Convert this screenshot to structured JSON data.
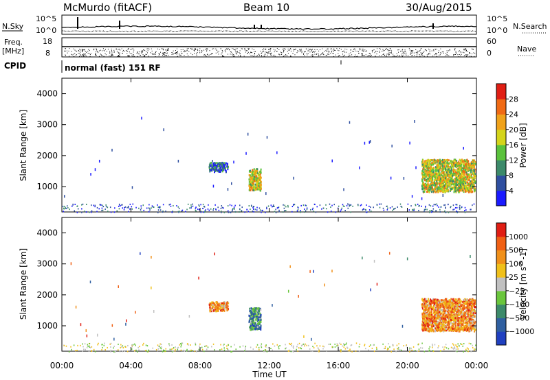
{
  "header": {
    "title": "McMurdo (fitACF)",
    "beam": "Beam 10",
    "date": "30/Aug/2015"
  },
  "summary_panel": {
    "nsky_label": "N.Sky",
    "nsky_ticks": [
      "10^5",
      "10^0"
    ],
    "nsearch_label": "N.Search",
    "nsearch_ticks": [
      "10^5",
      "10^0"
    ],
    "freq_label": "Freq.",
    "freq_unit": "[MHz]",
    "freq_ticks": [
      "18",
      "8"
    ],
    "nave_label": "Nave",
    "nave_ticks": [
      "60",
      "0"
    ],
    "cpid_label": "CPID",
    "cpid_text": "normal (fast) 151 RF"
  },
  "chart_data": [
    {
      "type": "heatmap",
      "name": "power",
      "ylabel": "Slant Range [km]",
      "xlabel": "Time UT",
      "ylim": [
        180,
        4500
      ],
      "yticks": [
        "1000",
        "2000",
        "3000",
        "4000"
      ],
      "xticks": [
        "00:00",
        "04:00",
        "08:00",
        "12:00",
        "16:00",
        "20:00",
        "00:00"
      ],
      "colorbar": {
        "label": "Power [dB]",
        "ticks": [
          "4",
          "8",
          "12",
          "16",
          "20",
          "24",
          "28"
        ],
        "colors": [
          "#1a1aff",
          "#2f4fa0",
          "#3c8a6a",
          "#5ac23c",
          "#d4d41a",
          "#f0a21a",
          "#f06a14",
          "#e01e14"
        ]
      },
      "regions": [
        {
          "t": [
            8.5,
            9.6
          ],
          "r": [
            1500,
            1800
          ],
          "level": 1
        },
        {
          "t": [
            10.8,
            11.5
          ],
          "r": [
            900,
            1600
          ],
          "level": 4
        },
        {
          "t": [
            20.8,
            23.9
          ],
          "r": [
            850,
            1900
          ],
          "level": 4
        }
      ]
    },
    {
      "type": "heatmap",
      "name": "velocity",
      "ylabel": "Slant Range [km]",
      "xlabel": "Time UT",
      "ylim": [
        180,
        4500
      ],
      "yticks": [
        "1000",
        "2000",
        "3000",
        "4000"
      ],
      "xticks": [
        "00:00",
        "04:00",
        "08:00",
        "12:00",
        "16:00",
        "20:00",
        "00:00"
      ],
      "colorbar": {
        "label": "Velocity [m s^-1]",
        "ticks": [
          "1000",
          "500",
          "100",
          "25",
          "−25",
          "−100",
          "−500",
          "−1000"
        ],
        "colors": [
          "#2040c0",
          "#2f5fa0",
          "#3c8a6a",
          "#6ac63c",
          "#c0c0c0",
          "#f0c01a",
          "#f0901a",
          "#f06014",
          "#e01e14"
        ]
      },
      "regions": [
        {
          "t": [
            8.5,
            9.6
          ],
          "r": [
            1500,
            1800
          ],
          "level": 6
        },
        {
          "t": [
            10.8,
            11.5
          ],
          "r": [
            900,
            1600
          ],
          "level": 2
        },
        {
          "t": [
            20.8,
            23.9
          ],
          "r": [
            850,
            1900
          ],
          "level": 6
        }
      ]
    }
  ],
  "time_axis_label": "Time UT"
}
